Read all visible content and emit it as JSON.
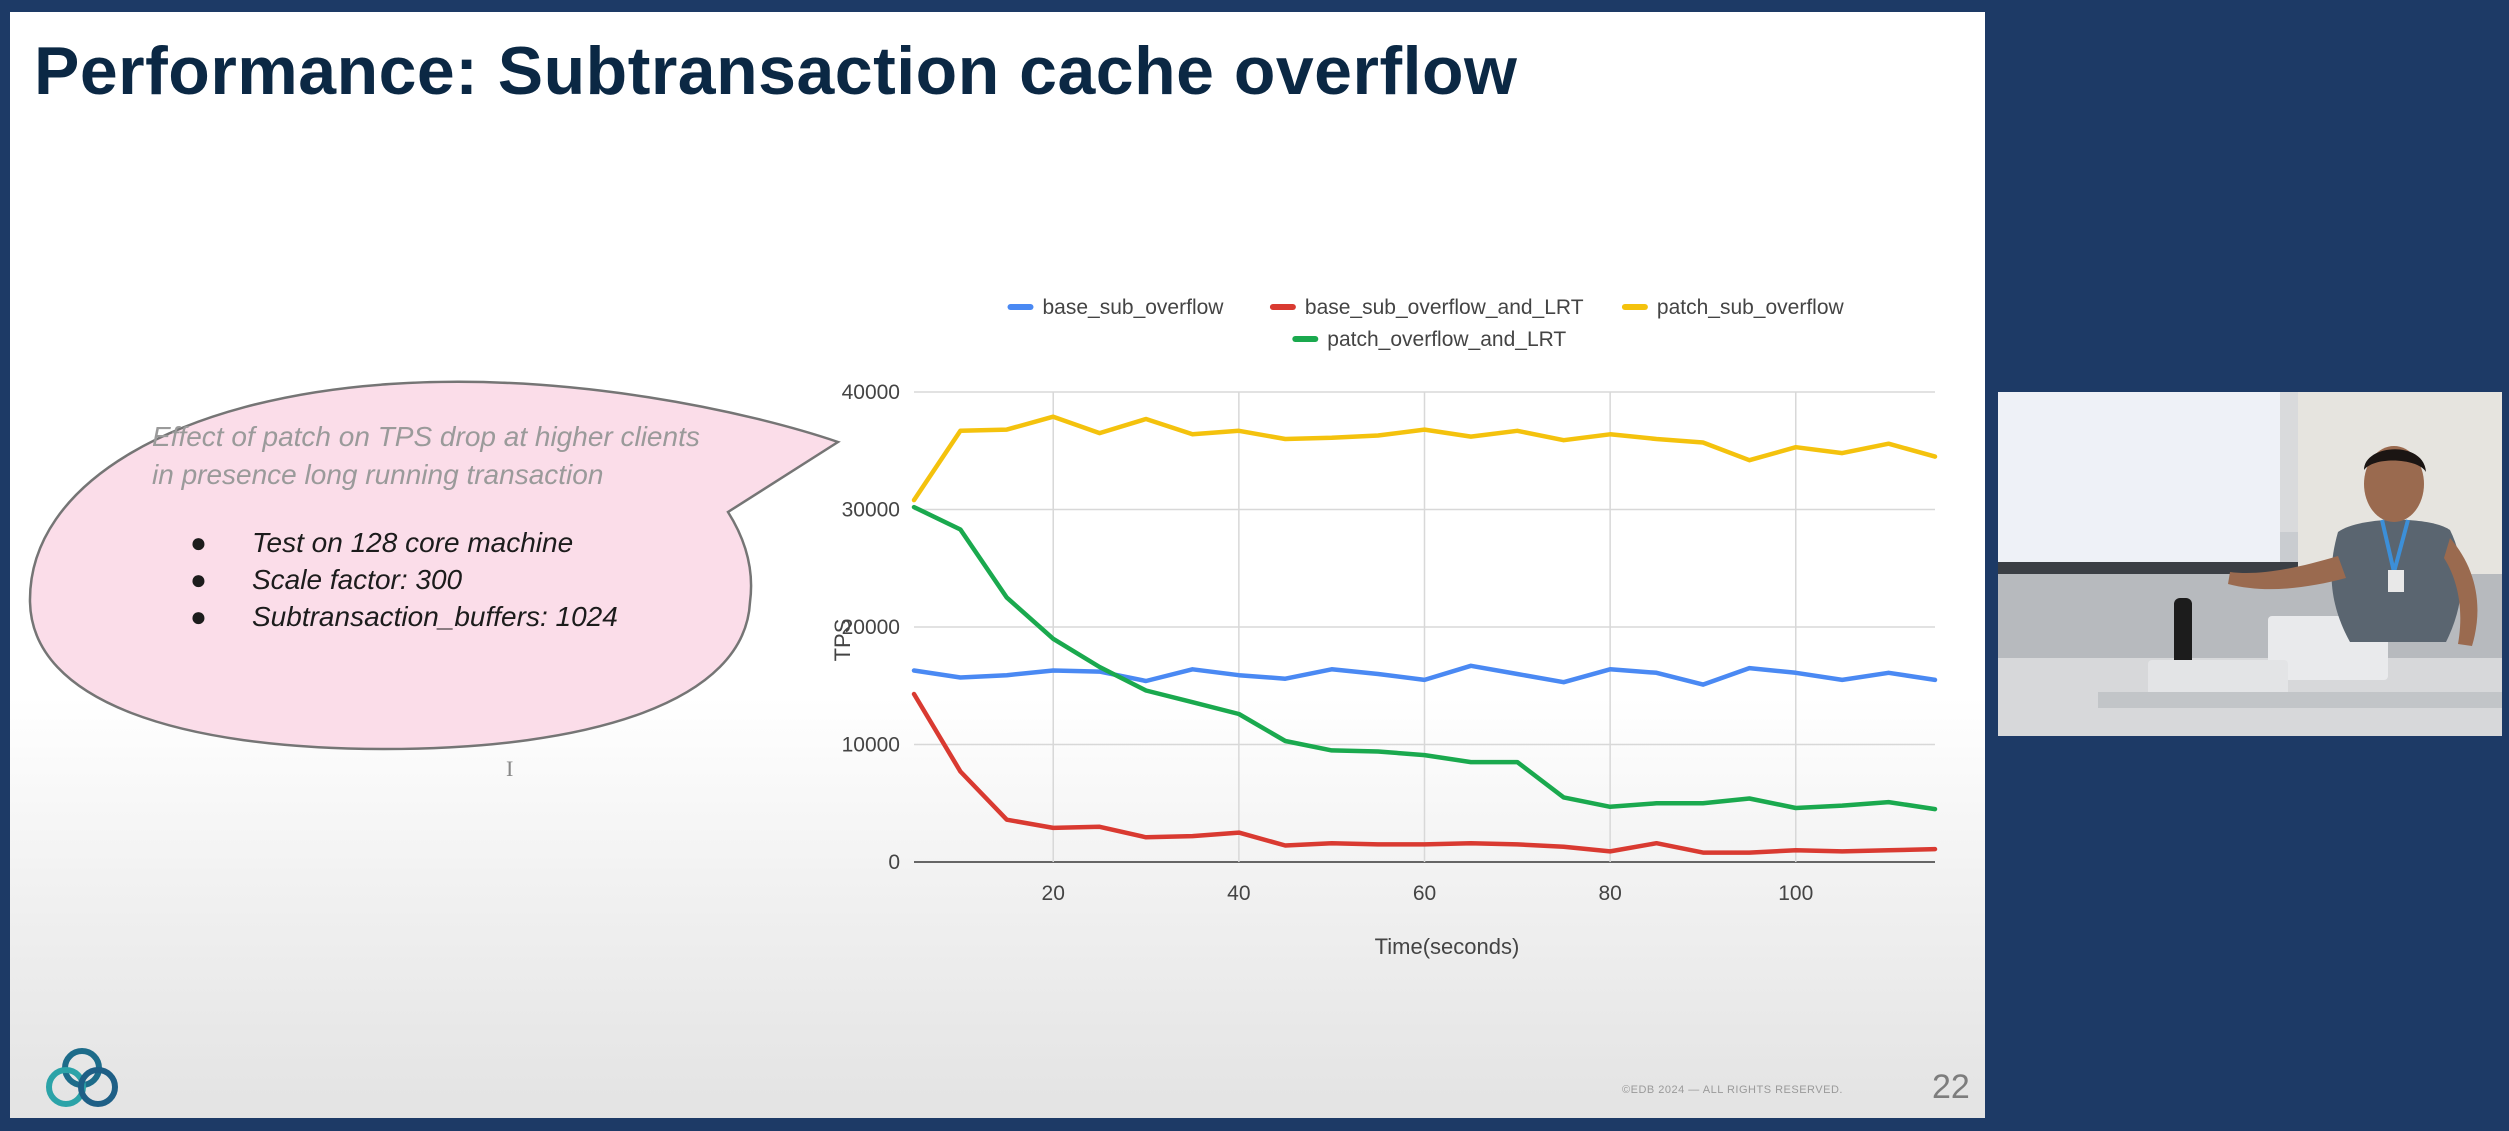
{
  "slide": {
    "title": "Performance: Subtransaction cache overflow",
    "callout": {
      "heading": "Effect of patch on TPS drop at higher clients in presence long running transaction",
      "bullets": [
        "Test on 128 core machine",
        "Scale factor: 300",
        "Subtransaction_buffers: 1024"
      ]
    },
    "footer": {
      "copyright": "©EDB 2024 — ALL RIGHTS RESERVED.",
      "page_number": "22"
    }
  },
  "chart_data": {
    "type": "line",
    "title": "",
    "xlabel": "Time(seconds)",
    "ylabel": "TPS",
    "xlim": [
      5,
      115
    ],
    "ylim": [
      0,
      40000
    ],
    "x_ticks": [
      20,
      40,
      60,
      80,
      100
    ],
    "y_ticks": [
      0,
      10000,
      20000,
      30000,
      40000
    ],
    "grid": true,
    "legend_position": "top",
    "x": [
      5,
      10,
      15,
      20,
      25,
      30,
      35,
      40,
      45,
      50,
      55,
      60,
      65,
      70,
      75,
      80,
      85,
      90,
      95,
      100,
      105,
      110,
      115
    ],
    "series": [
      {
        "name": "base_sub_overflow",
        "color": "#4a89f3",
        "values": [
          16300,
          15700,
          15900,
          16300,
          16200,
          15400,
          16400,
          15900,
          15600,
          16400,
          16000,
          15500,
          16700,
          16000,
          15300,
          16400,
          16100,
          15100,
          16500,
          16100,
          15500,
          16100,
          15500
        ]
      },
      {
        "name": "base_sub_overflow_and_LRT",
        "color": "#d93a31",
        "values": [
          14300,
          7700,
          3600,
          2900,
          3000,
          2100,
          2200,
          2500,
          1400,
          1600,
          1500,
          1500,
          1600,
          1500,
          1300,
          900,
          1600,
          800,
          800,
          1000,
          900,
          1000,
          1100
        ]
      },
      {
        "name": "patch_sub_overflow",
        "color": "#f4c20d",
        "values": [
          30800,
          36700,
          36800,
          37900,
          36500,
          37700,
          36400,
          36700,
          36000,
          36100,
          36300,
          36800,
          36200,
          36700,
          35900,
          36400,
          36000,
          35700,
          34200,
          35300,
          34800,
          35600,
          34500
        ]
      },
      {
        "name": "patch_overflow_and_LRT",
        "color": "#1aa94e",
        "values": [
          30200,
          28300,
          22500,
          19000,
          16600,
          14600,
          13600,
          12600,
          10300,
          9500,
          9400,
          9100,
          8500,
          8500,
          5500,
          4700,
          5000,
          5000,
          5400,
          4600,
          4800,
          5100,
          4500
        ]
      }
    ]
  }
}
